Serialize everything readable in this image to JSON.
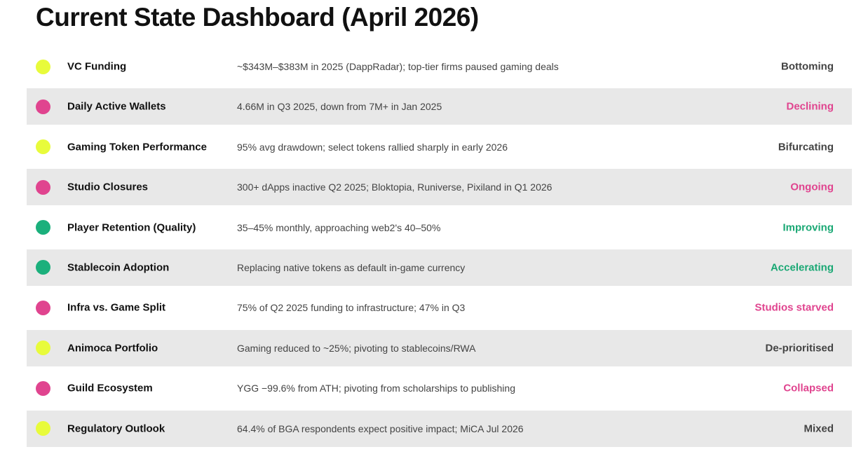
{
  "title": "Current State Dashboard (April 2026)",
  "colors": {
    "yellow": "#e8fb3b",
    "pink": "#e0448f",
    "green": "#1bb07c",
    "neutral_text": "#444444",
    "pink_text": "#e0448f",
    "green_text": "#1aa874",
    "shade": "#e8e8e8"
  },
  "rows": [
    {
      "metric": "VC Funding",
      "detail": "~$343M–$383M in 2025 (DappRadar); top-tier firms paused gaming deals",
      "status": "Bottoming",
      "dot": "yellow",
      "status_color": "neutral"
    },
    {
      "metric": "Daily Active Wallets",
      "detail": "4.66M in Q3 2025, down from 7M+ in Jan 2025",
      "status": "Declining",
      "dot": "pink",
      "status_color": "pink"
    },
    {
      "metric": "Gaming Token Performance",
      "detail": "95% avg drawdown; select tokens rallied sharply in early 2026",
      "status": "Bifurcating",
      "dot": "yellow",
      "status_color": "neutral"
    },
    {
      "metric": "Studio Closures",
      "detail": "300+ dApps inactive Q2 2025; Bloktopia, Runiverse, Pixiland in Q1 2026",
      "status": "Ongoing",
      "dot": "pink",
      "status_color": "pink"
    },
    {
      "metric": "Player Retention (Quality)",
      "detail": "35–45% monthly, approaching web2's 40–50%",
      "status": "Improving",
      "dot": "green",
      "status_color": "green"
    },
    {
      "metric": "Stablecoin Adoption",
      "detail": "Replacing native tokens as default in-game currency",
      "status": "Accelerating",
      "dot": "green",
      "status_color": "green"
    },
    {
      "metric": "Infra vs. Game Split",
      "detail": "75% of Q2 2025 funding to infrastructure; 47% in Q3",
      "status": "Studios starved",
      "dot": "pink",
      "status_color": "pink"
    },
    {
      "metric": "Animoca Portfolio",
      "detail": "Gaming reduced to ~25%; pivoting to stablecoins/RWA",
      "status": "De-prioritised",
      "dot": "yellow",
      "status_color": "neutral"
    },
    {
      "metric": "Guild Ecosystem",
      "detail": "YGG −99.6% from ATH; pivoting from scholarships to publishing",
      "status": "Collapsed",
      "dot": "pink",
      "status_color": "pink"
    },
    {
      "metric": "Regulatory Outlook",
      "detail": "64.4% of BGA respondents expect positive impact; MiCA Jul 2026",
      "status": "Mixed",
      "dot": "yellow",
      "status_color": "neutral"
    }
  ]
}
